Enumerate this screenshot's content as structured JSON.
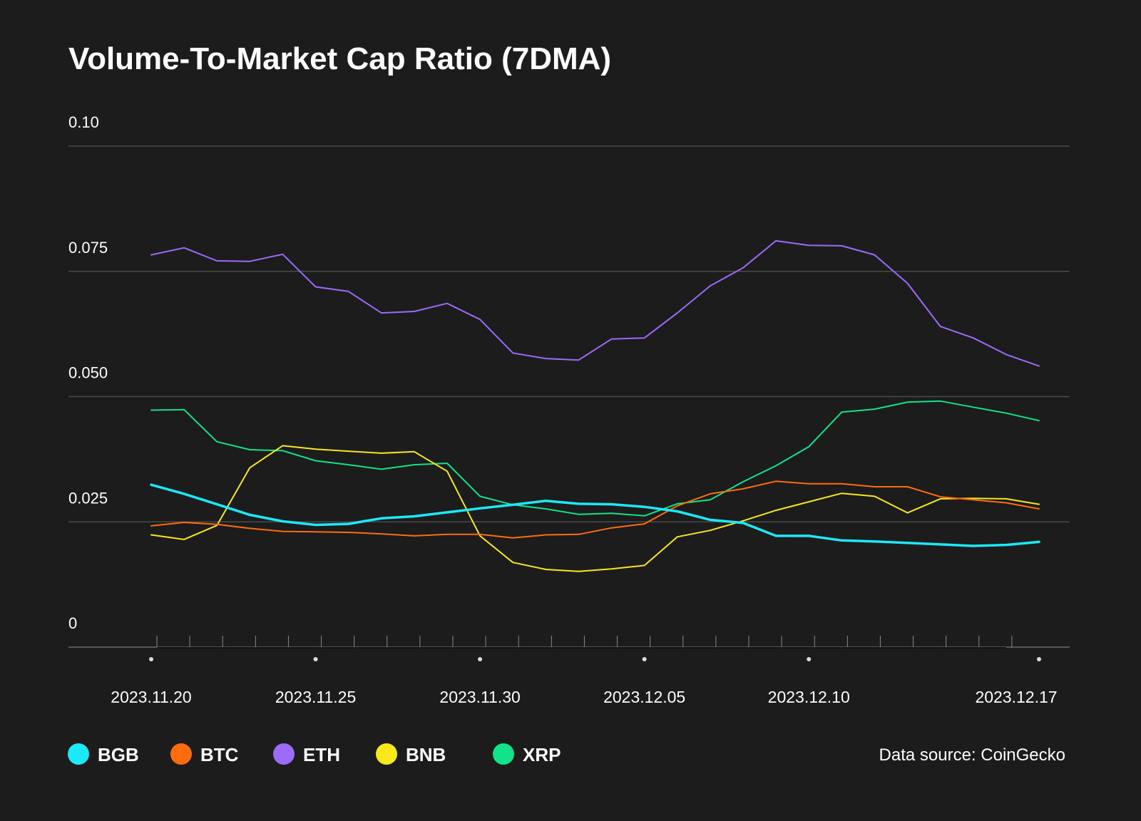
{
  "chart_data": {
    "type": "line",
    "title": "Volume-To-Market Cap Ratio (7DMA)",
    "xlabel": "",
    "ylabel": "",
    "ylim": [
      0,
      0.1
    ],
    "y_ticks": [
      "0",
      "0.025",
      "0.050",
      "0.075",
      "0.10"
    ],
    "y_tick_values": [
      0,
      0.025,
      0.05,
      0.075,
      0.1
    ],
    "x_tick_labels": [
      "2023.11.20",
      "2023.11.25",
      "2023.11.30",
      "2023.12.05",
      "2023.12.10",
      "2023.12.17"
    ],
    "x_tick_indices": [
      0,
      5,
      10,
      15,
      20,
      27
    ],
    "categories": [
      "2023.11.20",
      "2023.11.21",
      "2023.11.22",
      "2023.11.23",
      "2023.11.24",
      "2023.11.25",
      "2023.11.26",
      "2023.11.27",
      "2023.11.28",
      "2023.11.29",
      "2023.11.30",
      "2023.12.01",
      "2023.12.02",
      "2023.12.03",
      "2023.12.04",
      "2023.12.05",
      "2023.12.06",
      "2023.12.07",
      "2023.12.08",
      "2023.12.09",
      "2023.12.10",
      "2023.12.11",
      "2023.12.12",
      "2023.12.13",
      "2023.12.14",
      "2023.12.15",
      "2023.12.16",
      "2023.12.17"
    ],
    "series": [
      {
        "name": "BGB",
        "color": "#1de9f6",
        "width": 3.5,
        "values": [
          0.0324,
          0.0306,
          0.0285,
          0.0264,
          0.0251,
          0.0244,
          0.0246,
          0.0257,
          0.0261,
          0.0269,
          0.0277,
          0.0284,
          0.0292,
          0.0286,
          0.0285,
          0.028,
          0.0271,
          0.0254,
          0.0248,
          0.0222,
          0.0222,
          0.0213,
          0.0211,
          0.0208,
          0.0205,
          0.0202,
          0.0204,
          0.021
        ]
      },
      {
        "name": "BTC",
        "color": "#ff6b0f",
        "width": 2,
        "values": [
          0.0242,
          0.0249,
          0.0245,
          0.0237,
          0.0231,
          0.023,
          0.0229,
          0.0226,
          0.0222,
          0.0225,
          0.0225,
          0.0218,
          0.0224,
          0.0225,
          0.0238,
          0.0246,
          0.0282,
          0.0306,
          0.0316,
          0.0331,
          0.0326,
          0.0326,
          0.032,
          0.032,
          0.03,
          0.0294,
          0.0288,
          0.0276
        ]
      },
      {
        "name": "ETH",
        "color": "#9b6bfa",
        "width": 2,
        "values": [
          0.0783,
          0.0797,
          0.0771,
          0.077,
          0.0784,
          0.0719,
          0.071,
          0.0667,
          0.067,
          0.0686,
          0.0654,
          0.0587,
          0.0576,
          0.0573,
          0.0615,
          0.0617,
          0.0667,
          0.0721,
          0.0757,
          0.0811,
          0.0802,
          0.0801,
          0.0783,
          0.0726,
          0.064,
          0.0617,
          0.0584,
          0.0561
        ]
      },
      {
        "name": "BNB",
        "color": "#f6e81d",
        "width": 2,
        "values": [
          0.0224,
          0.0215,
          0.0243,
          0.0358,
          0.0402,
          0.0395,
          0.0391,
          0.0387,
          0.039,
          0.0351,
          0.0222,
          0.0169,
          0.0155,
          0.0151,
          0.0156,
          0.0163,
          0.022,
          0.0233,
          0.0252,
          0.0273,
          0.029,
          0.0307,
          0.0301,
          0.0268,
          0.0296,
          0.0297,
          0.0296,
          0.0285
        ]
      },
      {
        "name": "XRP",
        "color": "#12e38a",
        "width": 2,
        "values": [
          0.0473,
          0.0474,
          0.041,
          0.0394,
          0.0392,
          0.0372,
          0.0364,
          0.0355,
          0.0364,
          0.0367,
          0.0301,
          0.0284,
          0.0276,
          0.0265,
          0.0267,
          0.0262,
          0.0286,
          0.0294,
          0.033,
          0.0362,
          0.04,
          0.0469,
          0.0475,
          0.0489,
          0.0491,
          0.0479,
          0.0467,
          0.0452
        ]
      }
    ],
    "legend": [
      "BGB",
      "BTC",
      "ETH",
      "BNB",
      "XRP"
    ],
    "legend_position": "bottom-left",
    "grid": true
  },
  "source_label": "Data source: CoinGecko"
}
